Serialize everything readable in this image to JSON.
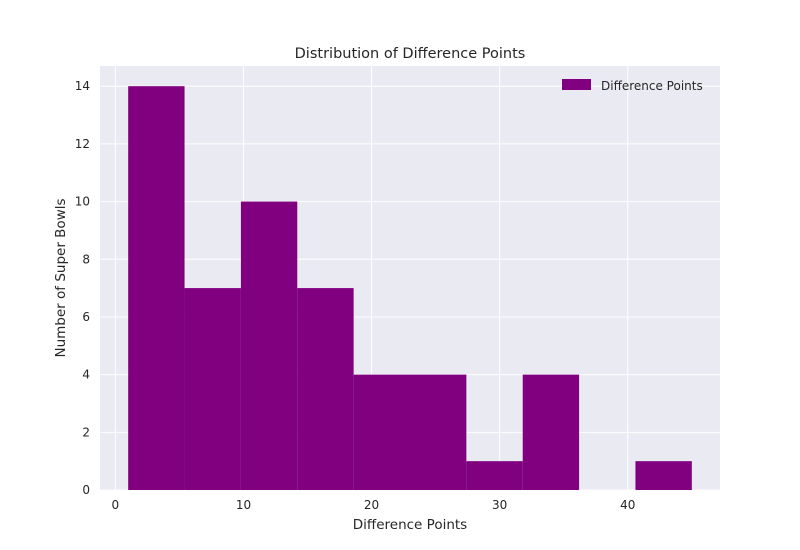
{
  "chart_data": {
    "type": "bar",
    "title": "Distribution of Difference Points",
    "xlabel": "Difference Points",
    "ylabel": "Number of Super Bowls",
    "bin_edges": [
      1,
      5.4,
      9.8,
      14.2,
      18.6,
      23,
      27.4,
      31.8,
      36.2,
      40.6,
      45
    ],
    "values": [
      14,
      7,
      10,
      7,
      4,
      4,
      1,
      4,
      0,
      1
    ],
    "series": [
      {
        "name": "Difference Points",
        "values": [
          14,
          7,
          10,
          7,
          4,
          4,
          1,
          4,
          0,
          1
        ]
      }
    ],
    "xlim": [
      -1.2,
      47.2
    ],
    "ylim": [
      0,
      14.7
    ],
    "xticks": [
      0,
      10,
      20,
      30,
      40
    ],
    "yticks": [
      0,
      2,
      4,
      6,
      8,
      10,
      12,
      14
    ],
    "grid": true,
    "legend_position": "upper right",
    "colors": {
      "bar": "#800080",
      "background": "#EAEAF2",
      "grid": "#FFFFFF"
    }
  }
}
